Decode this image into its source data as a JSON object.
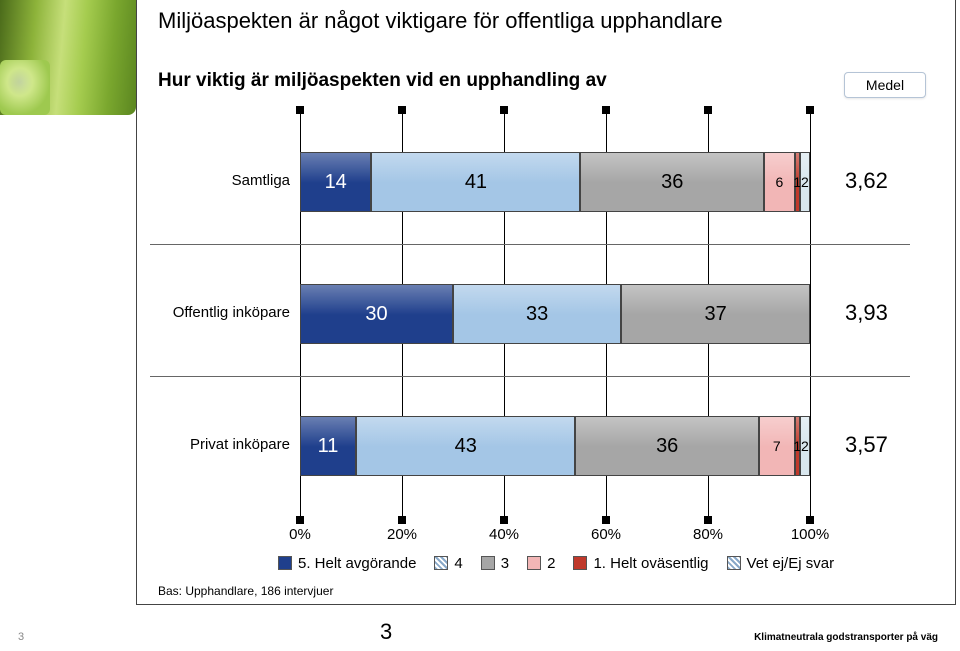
{
  "title": "Miljöaspekten är något viktigare för offentliga upphandlare",
  "subtitle": "Hur viktig är miljöaspekten vid en upphandling av",
  "medel_label": "Medel",
  "bas": "Bas: Upphandlare, 186 intervjuer",
  "slide_number": "3",
  "page_number": "3",
  "footer": "Klimatneutrala godstransporter på väg",
  "chart": {
    "type": "stacked-bar-horizontal",
    "xlim": [
      0,
      100
    ],
    "xticks": [
      0,
      20,
      40,
      60,
      80,
      100
    ],
    "xtick_labels": [
      "0%",
      "20%",
      "40%",
      "60%",
      "80%",
      "100%"
    ],
    "label_fontsize": 15,
    "value_fontsize": 20,
    "avg_fontsize": 22,
    "background": "#ffffff",
    "gridline_color": "#000000",
    "sep_color": "#666666",
    "legend": [
      {
        "swatch": "#1f3f8c",
        "label": "5. Helt avgörande"
      },
      {
        "swatch": "#88a8c8",
        "hatch": true,
        "label": "4"
      },
      {
        "swatch": "#a6a6a6",
        "label": "3"
      },
      {
        "swatch": "#f2b6b6",
        "label": "2"
      },
      {
        "swatch": "#c0392b",
        "label": "1. Helt oväsentlig"
      },
      {
        "swatch": "#d9e7ee",
        "hatch": true,
        "label": "Vet ej/Ej svar"
      }
    ],
    "rows": [
      {
        "label": "Samtliga",
        "avg": "3,62",
        "segments": [
          {
            "value": 14,
            "label": "14",
            "color": "#1f3f8c",
            "text": "#ffffff"
          },
          {
            "value": 41,
            "label": "41",
            "color": "#a4c6e6",
            "text": "#000000"
          },
          {
            "value": 36,
            "label": "36",
            "color": "#a6a6a6",
            "text": "#000000"
          },
          {
            "value": 6,
            "label": "6",
            "color": "#f2b6b6",
            "text": "#000000",
            "small": true
          },
          {
            "value": 1,
            "label": "1",
            "color": "#c0392b",
            "text": "#000000",
            "small": true
          },
          {
            "value": 2,
            "label": "2",
            "color": "#d9e7ee",
            "text": "#000000",
            "small": true
          }
        ]
      },
      {
        "label": "Offentlig inköpare",
        "avg": "3,93",
        "segments": [
          {
            "value": 30,
            "label": "30",
            "color": "#1f3f8c",
            "text": "#ffffff"
          },
          {
            "value": 33,
            "label": "33",
            "color": "#a4c6e6",
            "text": "#000000"
          },
          {
            "value": 37,
            "label": "37",
            "color": "#a6a6a6",
            "text": "#000000"
          }
        ]
      },
      {
        "label": "Privat inköpare",
        "avg": "3,57",
        "segments": [
          {
            "value": 11,
            "label": "11",
            "color": "#1f3f8c",
            "text": "#ffffff"
          },
          {
            "value": 43,
            "label": "43",
            "color": "#a4c6e6",
            "text": "#000000"
          },
          {
            "value": 36,
            "label": "36",
            "color": "#a6a6a6",
            "text": "#000000"
          },
          {
            "value": 7,
            "label": "7",
            "color": "#f2b6b6",
            "text": "#000000",
            "small": true
          },
          {
            "value": 1,
            "label": "1",
            "color": "#c0392b",
            "text": "#000000",
            "small": true
          },
          {
            "value": 2,
            "label": "2",
            "color": "#d9e7ee",
            "text": "#000000",
            "small": true
          }
        ]
      }
    ],
    "row_positions": [
      38,
      170,
      302
    ],
    "sep_positions": [
      130,
      262
    ]
  }
}
